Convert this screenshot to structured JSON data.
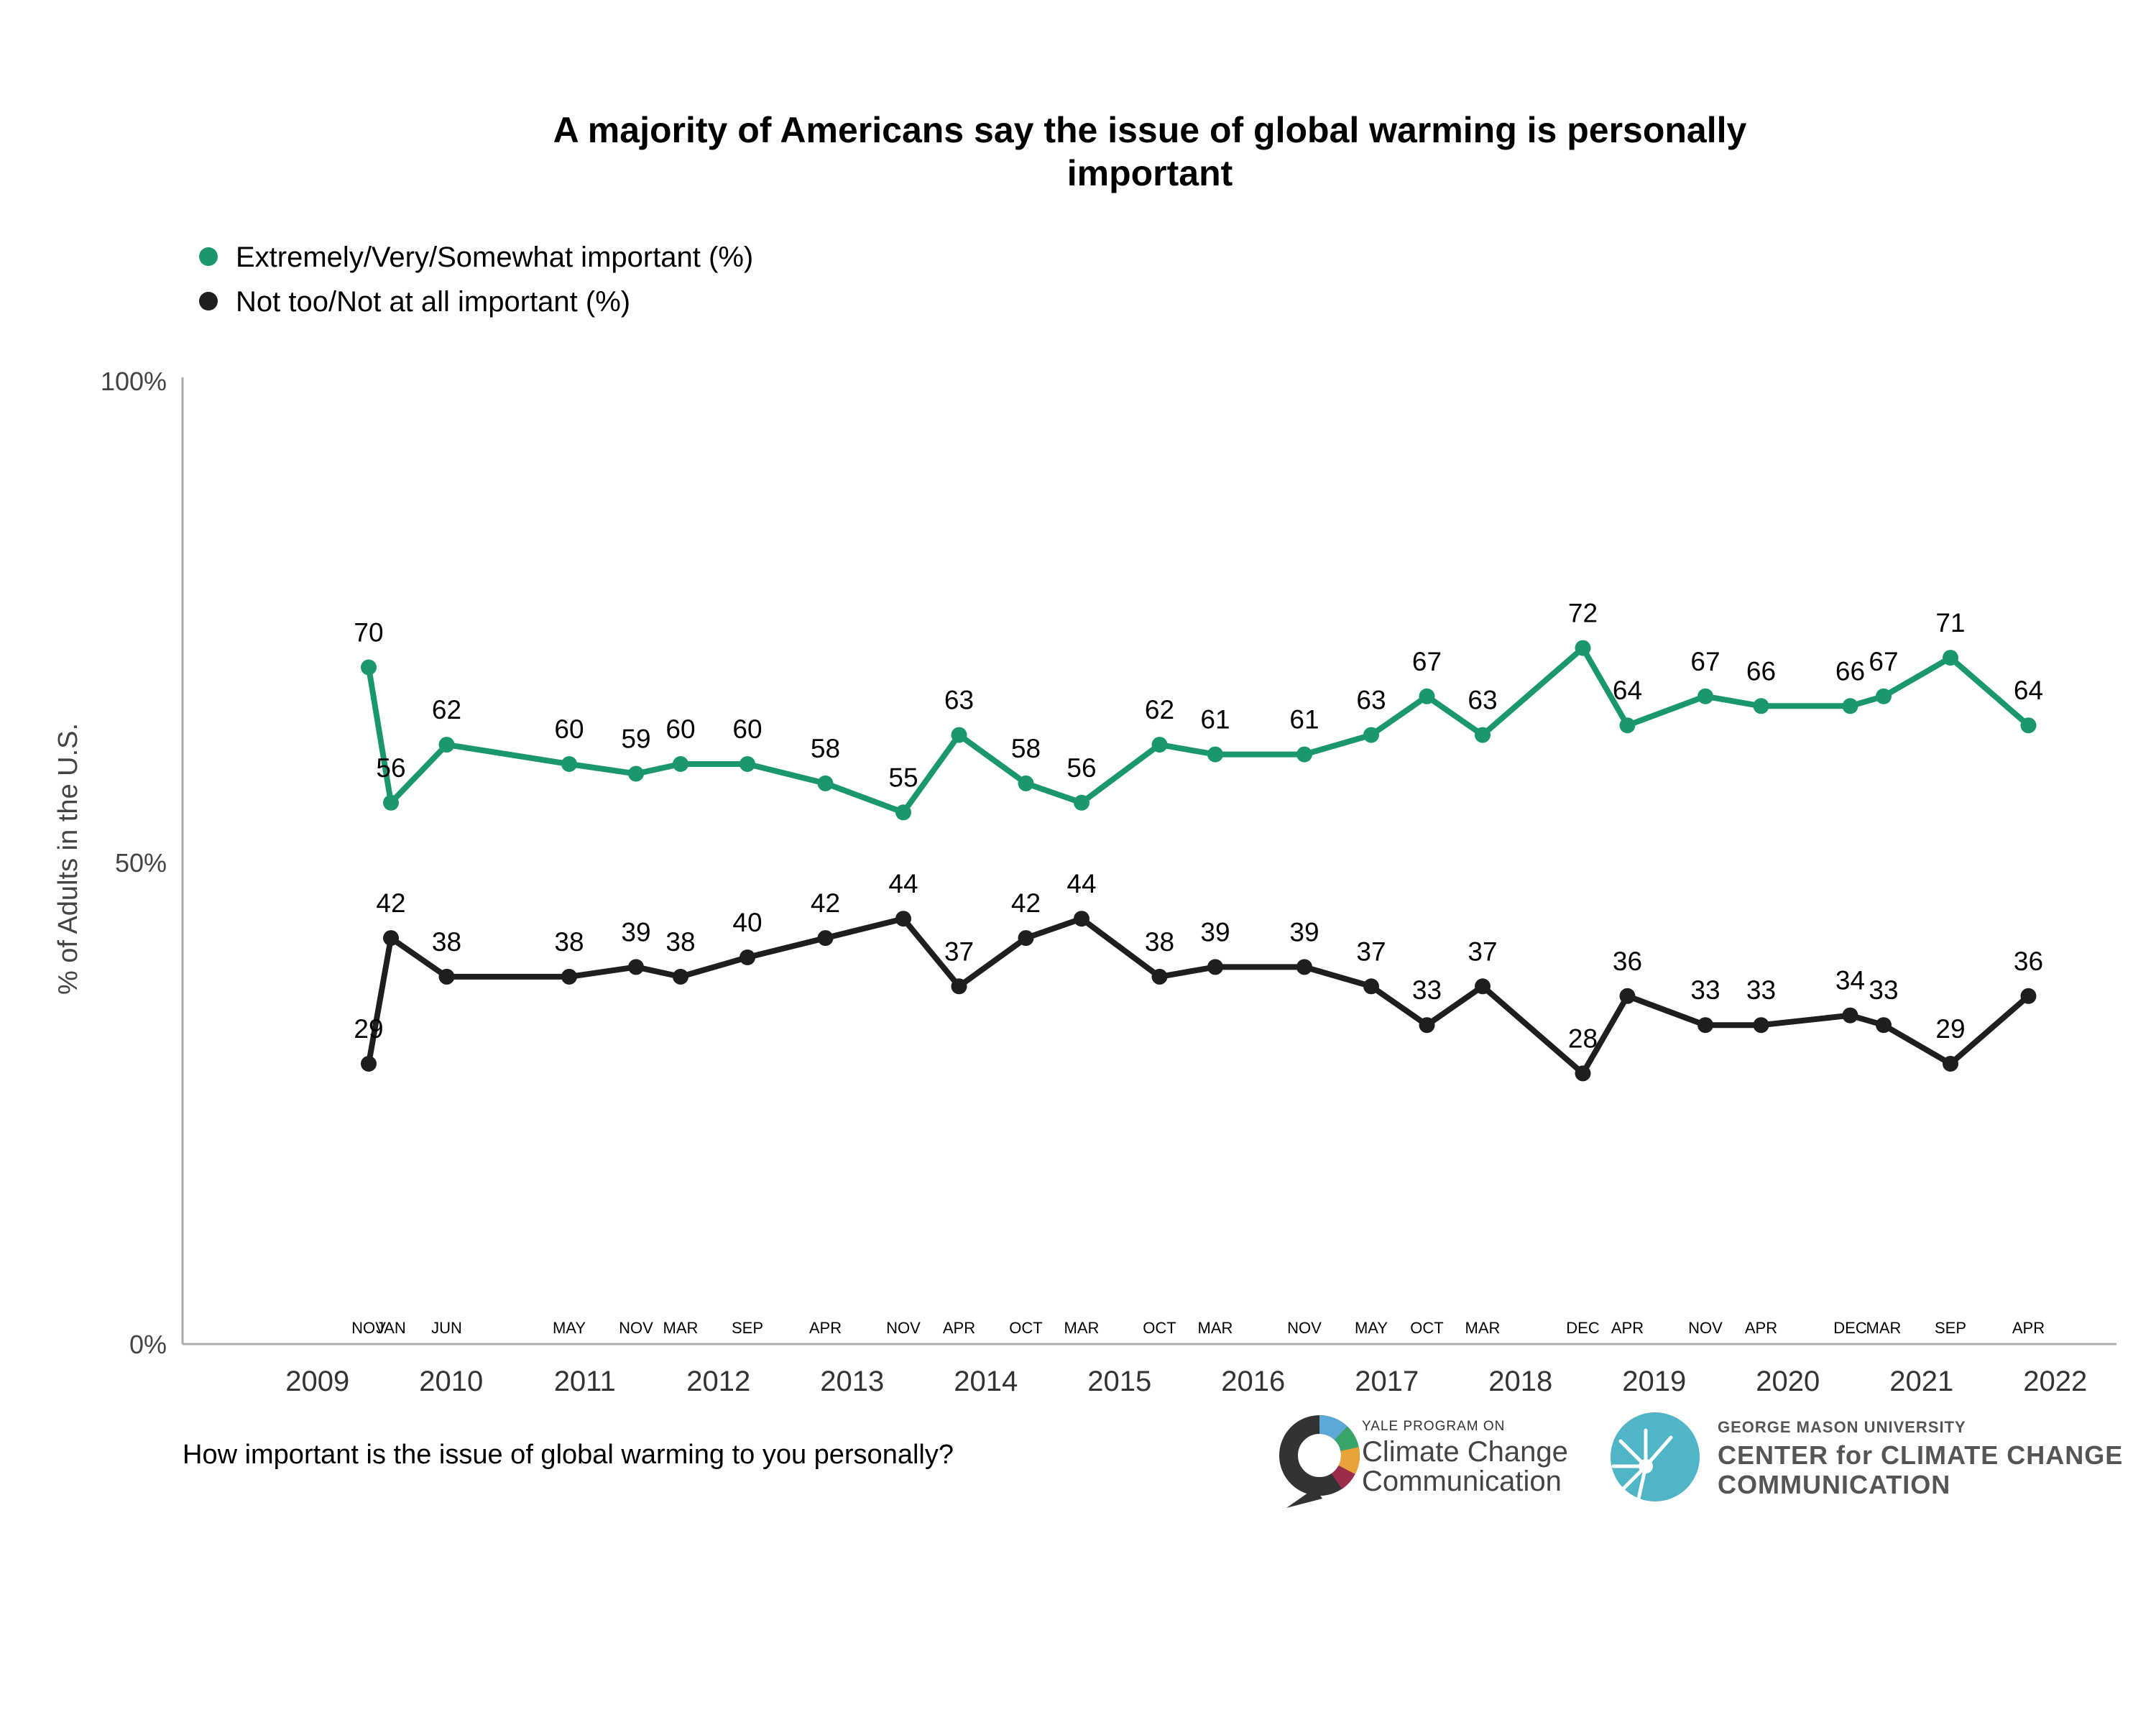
{
  "chart_data": {
    "type": "line",
    "title_line1": "A majority of Americans say the issue of global warming is personally",
    "title_line2": "important",
    "ylabel": "% of Adults in the U.S.",
    "ylim": [
      0,
      100
    ],
    "yticks": [
      "0%",
      "50%",
      "100%"
    ],
    "years": [
      "2009",
      "2010",
      "2011",
      "2012",
      "2013",
      "2014",
      "2015",
      "2016",
      "2017",
      "2018",
      "2019",
      "2020",
      "2021",
      "2022"
    ],
    "x": [
      "NOV 2009",
      "JAN 2010",
      "JUN 2010",
      "MAY 2011",
      "NOV 2011",
      "MAR 2012",
      "SEP 2012",
      "APR 2013",
      "NOV 2013",
      "APR 2014",
      "OCT 2014",
      "MAR 2015",
      "OCT 2015",
      "MAR 2016",
      "NOV 2016",
      "MAY 2017",
      "OCT 2017",
      "MAR 2018",
      "DEC 2018",
      "APR 2019",
      "NOV 2019",
      "APR 2020",
      "DEC 2020",
      "MAR 2021",
      "SEP 2021",
      "APR 2022"
    ],
    "month_labels": [
      "NOV",
      "JAN",
      "JUN",
      "MAY",
      "NOV",
      "MAR",
      "SEP",
      "APR",
      "NOV",
      "APR",
      "OCT",
      "MAR",
      "OCT",
      "MAR",
      "NOV",
      "MAY",
      "OCT",
      "MAR",
      "DEC",
      "APR",
      "NOV",
      "APR",
      "DEC",
      "MAR",
      "SEP",
      "APR"
    ],
    "series": [
      {
        "name": "Extremely/Very/Somewhat important (%)",
        "color": "#1b9770",
        "values": [
          70,
          56,
          62,
          60,
          59,
          60,
          60,
          58,
          55,
          63,
          58,
          56,
          62,
          61,
          61,
          63,
          67,
          63,
          72,
          64,
          67,
          66,
          66,
          67,
          71,
          64
        ]
      },
      {
        "name": "Not too/Not at all important (%)",
        "color": "#1e1e1e",
        "values": [
          29,
          42,
          38,
          38,
          39,
          38,
          40,
          42,
          44,
          37,
          42,
          44,
          38,
          39,
          39,
          37,
          33,
          37,
          28,
          36,
          33,
          33,
          34,
          33,
          29,
          36
        ]
      }
    ],
    "grid": false,
    "legend": "top-left"
  },
  "footer": {
    "question": "How important is the issue of global warming to you personally?"
  },
  "logos": {
    "yale_small": "YALE PROGRAM ON",
    "yale_line1": "Climate Change",
    "yale_line2": "Communication",
    "gmu_small": "GEORGE MASON UNIVERSITY",
    "gmu_line1": "CENTER for CLIMATE CHANGE",
    "gmu_line2": "COMMUNICATION"
  }
}
